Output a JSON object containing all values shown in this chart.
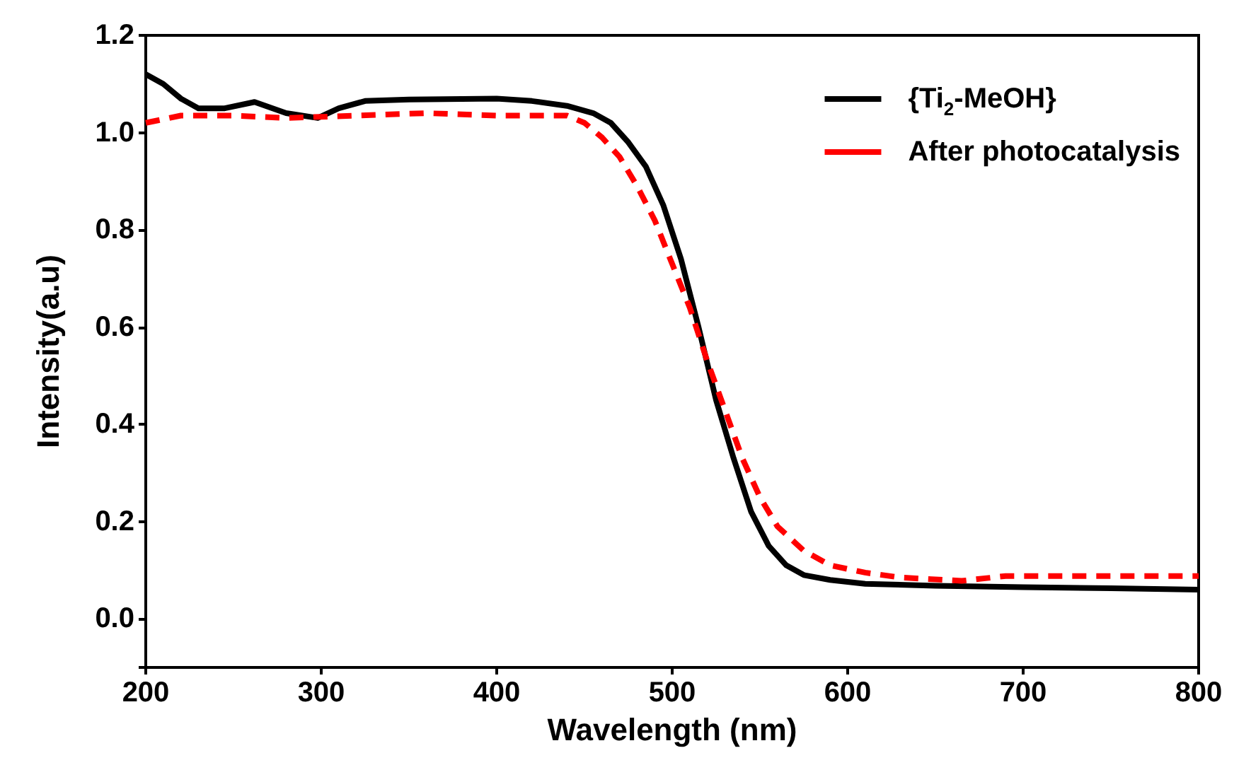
{
  "chart_data": {
    "type": "line",
    "xlabel": "Wavelength (nm)",
    "ylabel": "Intensity(a.u)",
    "xlim": [
      200,
      800
    ],
    "xticks": [
      200,
      300,
      400,
      500,
      600,
      700,
      800
    ],
    "ylim": [
      -0.1,
      1.2
    ],
    "yticks": [
      {
        "value": -0.1,
        "label": null
      },
      {
        "value": 0,
        "label": "0.0"
      },
      0.2,
      0.4,
      0.6,
      0.8,
      {
        "value": 1,
        "label": "1.0"
      },
      1.2
    ],
    "grid": false,
    "legend": "top right",
    "marker": "none",
    "series": [
      {
        "name": "{Ti$_{2}$-MeOH}",
        "color": "#000000",
        "line_style": "solid",
        "x": [
          200,
          210,
          220,
          230,
          245,
          262,
          280,
          298,
          310,
          325,
          350,
          400,
          420,
          440,
          455,
          465,
          475,
          485,
          495,
          505,
          515,
          525,
          535,
          545,
          555,
          565,
          575,
          590,
          610,
          650,
          700,
          750,
          800
        ],
        "values": [
          1.12,
          1.1,
          1.07,
          1.05,
          1.05,
          1.063,
          1.04,
          1.03,
          1.05,
          1.065,
          1.068,
          1.07,
          1.065,
          1.055,
          1.04,
          1.02,
          0.98,
          0.93,
          0.85,
          0.74,
          0.6,
          0.45,
          0.33,
          0.22,
          0.15,
          0.11,
          0.09,
          0.08,
          0.072,
          0.068,
          0.065,
          0.063,
          0.06
        ]
      },
      {
        "name": "After photocatalysis",
        "color": "#ff0000",
        "line_style": "dashed",
        "x": [
          200,
          220,
          250,
          280,
          320,
          360,
          400,
          440,
          450,
          460,
          470,
          480,
          490,
          500,
          510,
          520,
          530,
          540,
          550,
          560,
          575,
          590,
          610,
          630,
          665,
          690,
          730,
          800
        ],
        "values": [
          1.02,
          1.035,
          1.035,
          1.03,
          1.035,
          1.04,
          1.035,
          1.035,
          1.02,
          0.99,
          0.95,
          0.89,
          0.82,
          0.73,
          0.64,
          0.53,
          0.43,
          0.33,
          0.25,
          0.19,
          0.14,
          0.11,
          0.095,
          0.085,
          0.078,
          0.088,
          0.088,
          0.088
        ]
      }
    ]
  }
}
